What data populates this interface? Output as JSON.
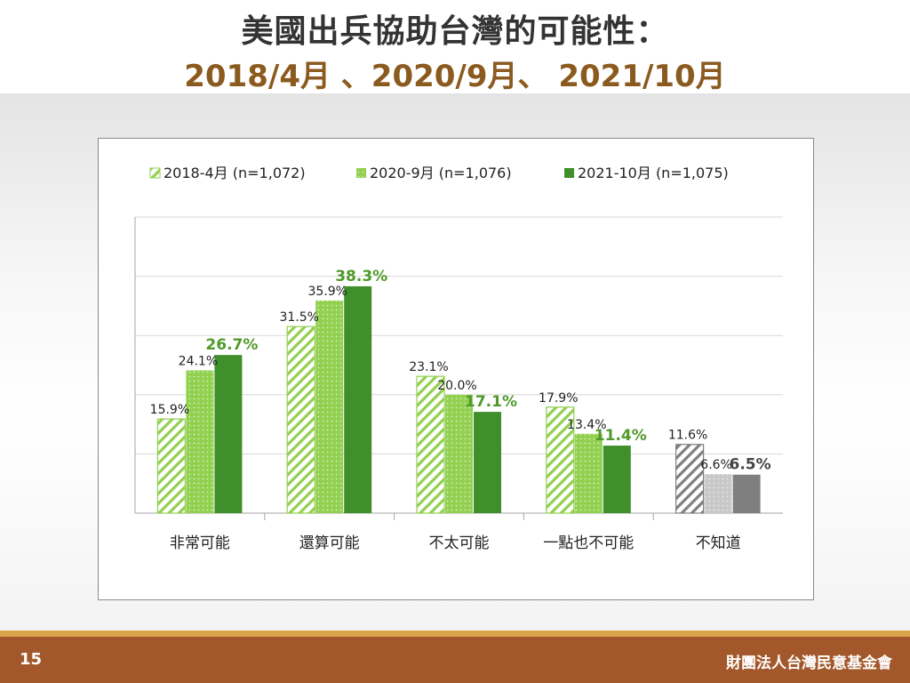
{
  "slide": {
    "title": "美國出兵協助台灣的可能性：",
    "subtitle": "2018/4月 、2020/9月、 2021/10月",
    "page_number": "15",
    "organization": "財團法人台灣民意基金會"
  },
  "chart_data": {
    "type": "bar",
    "categories": [
      "非常可能",
      "還算可能",
      "不太可能",
      "一點也不可能",
      "不知道"
    ],
    "series": [
      {
        "name": "2018-4月 (n=1,072)",
        "values": [
          15.9,
          31.5,
          23.1,
          17.9,
          11.6
        ],
        "labels": [
          "15.9%",
          "31.5%",
          "23.1%",
          "17.9%",
          "11.6%"
        ],
        "pattern": "hatch"
      },
      {
        "name": "2020-9月 (n=1,076)",
        "values": [
          24.1,
          35.9,
          20.0,
          13.4,
          6.6
        ],
        "labels": [
          "24.1%",
          "35.9%",
          "20.0%",
          "13.4%",
          "6.6%"
        ],
        "pattern": "dots"
      },
      {
        "name": "2021-10月 (n=1,075)",
        "values": [
          26.7,
          38.3,
          17.1,
          11.4,
          6.5
        ],
        "labels": [
          "26.7%",
          "38.3%",
          "17.1%",
          "11.4%",
          "6.5%"
        ],
        "pattern": "solid"
      }
    ],
    "ylim": [
      0,
      50
    ],
    "grid": true,
    "legend_position": "top-left",
    "colors": {
      "series_green": [
        "#92d050",
        "#92d050",
        "#3f8f2a"
      ],
      "series_gray": [
        "#7f7f7f",
        "#c8c8c8",
        "#7f7f7f"
      ],
      "highlight_label_green": "#4f9a2a",
      "highlight_label_gray": "#444444",
      "gridline": "#d9d9d9",
      "axis": "#a6a6a6"
    }
  }
}
